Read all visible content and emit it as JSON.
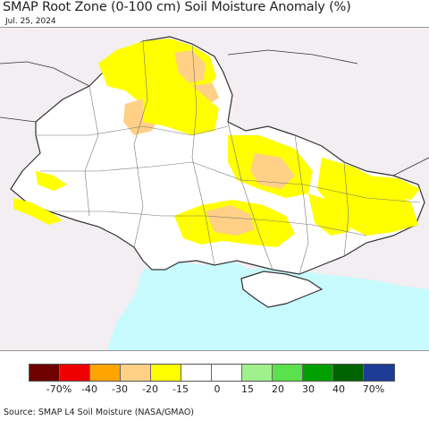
{
  "title": "SMAP Root Zone (0-100 cm) Soil Moisture Anomaly (%)",
  "date": "Jul. 25, 2024",
  "source": "Source: SMAP L4 Soil Moisture (NASA/GMAO)",
  "colors": {
    "land": "#ffffff",
    "outside": "#f2eef2",
    "sea": "#c7fbfd",
    "border": "#333333",
    "oblast_border": "#777777"
  },
  "legend": {
    "swatches": [
      {
        "color": "#6f0000",
        "range": "<-70"
      },
      {
        "color": "#ee0000",
        "range": "-70 to -40"
      },
      {
        "color": "#ffa500",
        "range": "-40 to -30"
      },
      {
        "color": "#ffd085",
        "range": "-30 to -20"
      },
      {
        "color": "#ffff00",
        "range": "-20 to -15"
      },
      {
        "color": "#ffffff",
        "range": "-15 to 0"
      },
      {
        "color": "#ffffff",
        "range": "0 to 15"
      },
      {
        "color": "#a0f08c",
        "range": "15 to 20"
      },
      {
        "color": "#5ae14b",
        "range": "20 to 30"
      },
      {
        "color": "#00a000",
        "range": "30 to 40"
      },
      {
        "color": "#006400",
        "range": "40 to 70"
      },
      {
        "color": "#1e3c96",
        "range": ">70"
      }
    ],
    "labels": [
      "-70%",
      "-40",
      "-30",
      "-20",
      "-15",
      "0",
      "15",
      "20",
      "30",
      "40",
      "70%"
    ]
  }
}
